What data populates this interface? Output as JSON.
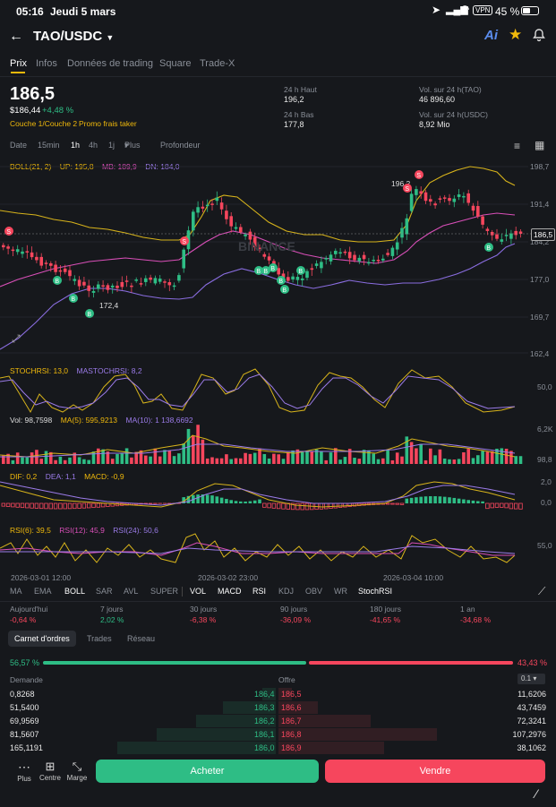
{
  "status_bar": {
    "time": "05:16",
    "date": "Jeudi 5 mars",
    "vpn": "VPN",
    "battery": "45 %"
  },
  "header": {
    "pair": "TAO/USDC",
    "ai_label": "Ai"
  },
  "tabs": [
    "Prix",
    "Infos",
    "Données de trading",
    "Square",
    "Trade-X"
  ],
  "price": {
    "last": "186,5",
    "usd": "$186,44",
    "change": "+4,48 %",
    "tags": [
      "Couche 1/Couche 2",
      "Promo frais taker"
    ],
    "high_label": "24 h Haut",
    "high": "196,2",
    "low_label": "24 h Bas",
    "low": "177,8",
    "vol_tao_label": "Vol. sur 24 h(TAO)",
    "vol_tao": "46 896,60",
    "vol_usdc_label": "Vol. sur 24 h(USDC)",
    "vol_usdc": "8,92 Mio"
  },
  "timeframes": [
    "Date",
    "15min",
    "1h",
    "4h",
    "1j",
    "Plus",
    "Profondeur"
  ],
  "active_timeframe": "1h",
  "boll": {
    "name": "BOLL(21, 2)",
    "up": "UP: 195,8",
    "mb": "MB: 189,9",
    "dn": "DN: 184,0"
  },
  "price_axis": [
    "198,7",
    "191,4",
    "184,2",
    "177,0",
    "169,7",
    "162,4"
  ],
  "current_price_tag": "186,5",
  "annotations": {
    "high": "196,2",
    "low": "172,4"
  },
  "watermark": "BINANCE",
  "stochrsi": {
    "a": "STOCHRSI: 13,0",
    "b": "MASTOCHRSI: 8,2",
    "axis": "50,0"
  },
  "vol": {
    "a": "Vol: 98,7598",
    "b": "MA(5): 595,9213",
    "c": "MA(10): 1 138,6692",
    "axis_top": "6,2K",
    "axis_bottom": "98,8"
  },
  "macd": {
    "a": "DIF: 0,2",
    "b": "DEA: 1,1",
    "c": "MACD: -0,9",
    "axis_top": "2,0",
    "axis_bottom": "0,0"
  },
  "rsi": {
    "a": "RSI(6): 39,5",
    "b": "RSI(12): 45,9",
    "c": "RSI(24): 50,6",
    "axis": "55,0"
  },
  "time_axis": [
    "2026-03-01 12:00",
    "2026-03-02 23:00",
    "2026-03-04 10:00"
  ],
  "indicator_tabs": [
    "MA",
    "EMA",
    "BOLL",
    "SAR",
    "AVL",
    "SUPER",
    "VOL",
    "MACD",
    "RSI",
    "KDJ",
    "OBV",
    "WR",
    "StochRSI"
  ],
  "performance": {
    "labels": [
      "Aujourd'hui",
      "7 jours",
      "30 jours",
      "90 jours",
      "180 jours",
      "1 an"
    ],
    "values": [
      "-0,64 %",
      "2,02 %",
      "-6,38 %",
      "-36,09 %",
      "-41,65 %",
      "-34,68 %"
    ]
  },
  "book_tabs": [
    "Carnet d'ordres",
    "Trades",
    "Réseau"
  ],
  "ratio": {
    "buy": "56,57 %",
    "sell": "43,43 %"
  },
  "book_headers": {
    "bid": "Demande",
    "ask": "Offre",
    "precision": "0.1"
  },
  "book": [
    {
      "bid_qty": "0,8268",
      "bid": "186,4",
      "ask": "186,5",
      "ask_qty": "11,6206"
    },
    {
      "bid_qty": "51,5400",
      "bid": "186,3",
      "ask": "186,6",
      "ask_qty": "43,7459"
    },
    {
      "bid_qty": "69,9569",
      "bid": "186,2",
      "ask": "186,7",
      "ask_qty": "72,3241"
    },
    {
      "bid_qty": "81,5607",
      "bid": "186,1",
      "ask": "186,8",
      "ask_qty": "107,2976"
    },
    {
      "bid_qty": "165,1191",
      "bid": "186,0",
      "ask": "186,9",
      "ask_qty": "38,1062"
    }
  ],
  "bottom": {
    "more": "Plus",
    "center": "Centre",
    "margin": "Marge",
    "buy": "Acheter",
    "sell": "Vendre"
  },
  "colors": {
    "up": "#2ebd85",
    "down": "#f6465d",
    "accent": "#f0b90b",
    "background": "#16181c"
  }
}
